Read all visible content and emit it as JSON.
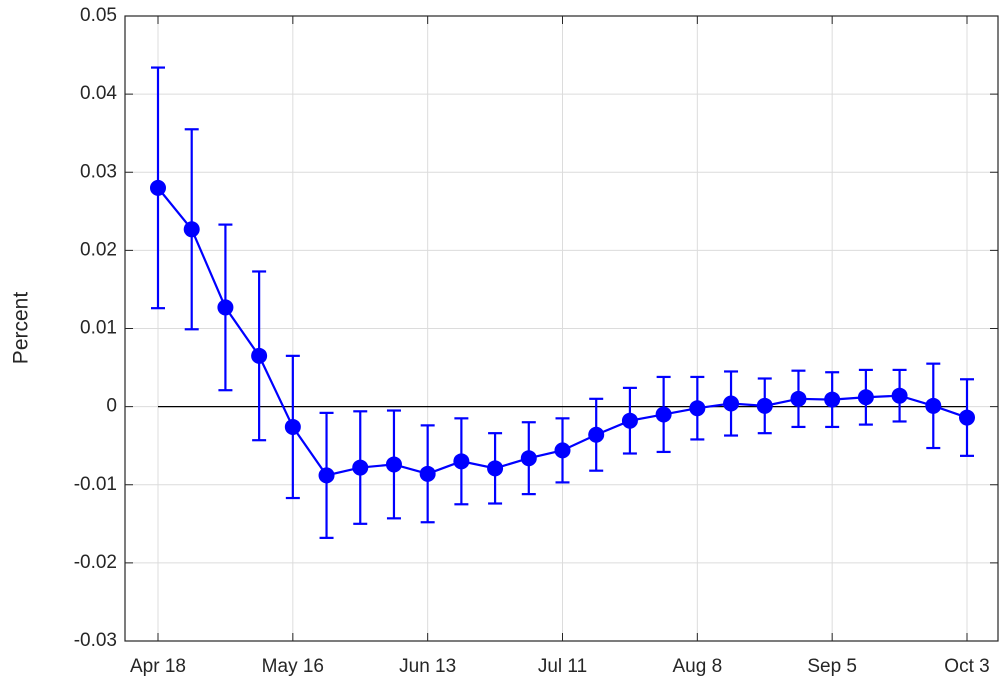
{
  "chart_data": {
    "type": "line",
    "y_label": "Percent",
    "categories": [
      "Apr 18",
      null,
      null,
      null,
      "May 16",
      null,
      null,
      null,
      "Jun 13",
      null,
      null,
      null,
      "Jul 11",
      null,
      null,
      null,
      "Aug 8",
      null,
      null,
      null,
      "Sep 5",
      null,
      null,
      null,
      "Oct 3"
    ],
    "values": [
      0.028,
      0.0227,
      0.0127,
      0.0065,
      -0.0026,
      -0.0088,
      -0.0078,
      -0.0074,
      -0.0086,
      -0.007,
      -0.0079,
      -0.0066,
      -0.0056,
      -0.0036,
      -0.0018,
      -0.001,
      -0.0002,
      0.0004,
      0.0001,
      0.001,
      0.0009,
      0.0012,
      0.0014,
      0.0001,
      -0.0014
    ],
    "errors": [
      0.0154,
      0.0128,
      0.0106,
      0.0108,
      0.0091,
      0.008,
      0.0072,
      0.0069,
      0.0062,
      0.0055,
      0.0045,
      0.0046,
      0.0041,
      0.0046,
      0.0042,
      0.0048,
      0.004,
      0.0041,
      0.0035,
      0.0036,
      0.0035,
      0.0035,
      0.0033,
      0.0054,
      0.0049
    ],
    "color": "#0000ff",
    "ylim": [
      -0.03,
      0.05
    ],
    "yticks": [
      -0.03,
      -0.02,
      -0.01,
      0,
      0.01,
      0.02,
      0.03,
      0.04,
      0.05
    ],
    "grid": true,
    "zero_line": true
  }
}
